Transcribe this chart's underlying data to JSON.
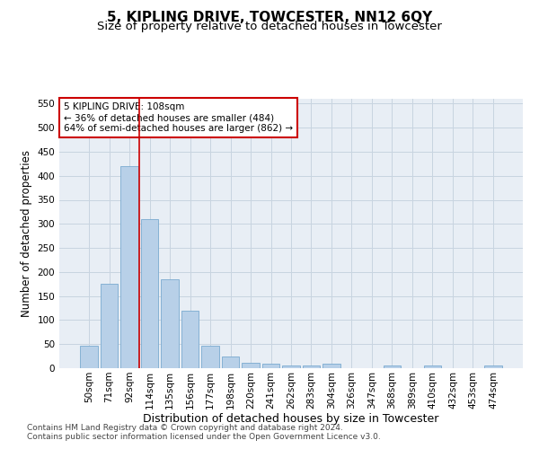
{
  "title": "5, KIPLING DRIVE, TOWCESTER, NN12 6QY",
  "subtitle": "Size of property relative to detached houses in Towcester",
  "xlabel": "Distribution of detached houses by size in Towcester",
  "ylabel": "Number of detached properties",
  "categories": [
    "50sqm",
    "71sqm",
    "92sqm",
    "114sqm",
    "135sqm",
    "156sqm",
    "177sqm",
    "198sqm",
    "220sqm",
    "241sqm",
    "262sqm",
    "283sqm",
    "304sqm",
    "326sqm",
    "347sqm",
    "368sqm",
    "389sqm",
    "410sqm",
    "432sqm",
    "453sqm",
    "474sqm"
  ],
  "values": [
    46,
    175,
    420,
    310,
    185,
    120,
    46,
    25,
    12,
    10,
    6,
    5,
    10,
    0,
    0,
    5,
    0,
    5,
    0,
    0,
    5
  ],
  "bar_color": "#b8d0e8",
  "bar_edge_color": "#7aaad0",
  "grid_color": "#c8d4e0",
  "bg_color": "#e8eef5",
  "vline_x": 2.5,
  "vline_color": "#cc0000",
  "annotation_text": "5 KIPLING DRIVE: 108sqm\n← 36% of detached houses are smaller (484)\n64% of semi-detached houses are larger (862) →",
  "annotation_box_color": "#ffffff",
  "annotation_box_edge": "#cc0000",
  "ylim": [
    0,
    560
  ],
  "yticks": [
    0,
    50,
    100,
    150,
    200,
    250,
    300,
    350,
    400,
    450,
    500,
    550
  ],
  "footer1": "Contains HM Land Registry data © Crown copyright and database right 2024.",
  "footer2": "Contains public sector information licensed under the Open Government Licence v3.0.",
  "title_fontsize": 11,
  "subtitle_fontsize": 9.5,
  "xlabel_fontsize": 9,
  "ylabel_fontsize": 8.5,
  "tick_fontsize": 7.5,
  "footer_fontsize": 6.5,
  "annot_fontsize": 7.5
}
